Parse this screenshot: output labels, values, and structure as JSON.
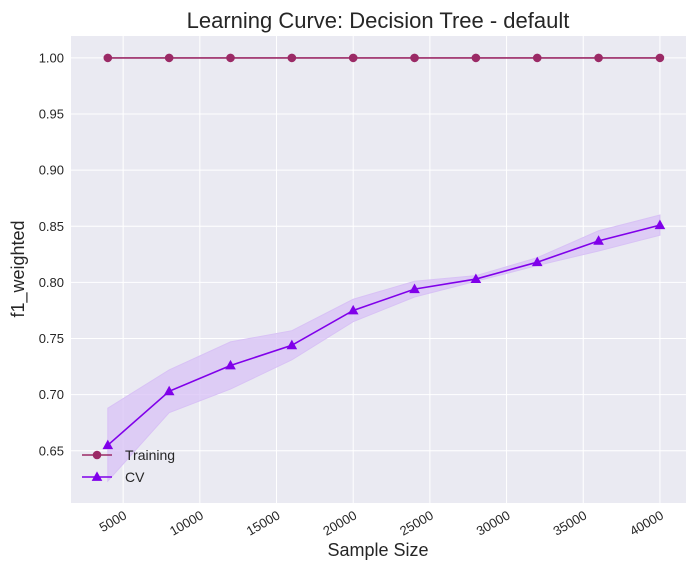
{
  "chart_data": {
    "type": "line",
    "title": "Learning Curve: Decision Tree - default",
    "xlabel": "Sample Size",
    "ylabel": "f1_weighted",
    "xlim": [
      1600,
      41700
    ],
    "ylim": [
      0.6035,
      1.0195
    ],
    "x_ticks": [
      5000,
      10000,
      15000,
      20000,
      25000,
      30000,
      35000,
      40000
    ],
    "y_ticks": [
      0.65,
      0.7,
      0.75,
      0.8,
      0.85,
      0.9,
      0.95,
      1.0
    ],
    "x_tick_labels": [
      "5000",
      "10000",
      "15000",
      "20000",
      "25000",
      "30000",
      "35000",
      "40000"
    ],
    "y_tick_labels": [
      "0.65",
      "0.70",
      "0.75",
      "0.80",
      "0.85",
      "0.90",
      "0.95",
      "1.00"
    ],
    "grid": true,
    "legend_position": "lower-left",
    "x": [
      4000,
      8000,
      12000,
      16000,
      20000,
      24000,
      28000,
      32000,
      36000,
      40000
    ],
    "series": [
      {
        "name": "Training",
        "marker": "circle",
        "color": "#9b2a66",
        "values": [
          1.0,
          1.0,
          1.0,
          1.0,
          1.0,
          1.0,
          1.0,
          1.0,
          1.0,
          1.0
        ],
        "lower": [
          1.0,
          1.0,
          1.0,
          1.0,
          1.0,
          1.0,
          1.0,
          1.0,
          1.0,
          1.0
        ],
        "upper": [
          1.0,
          1.0,
          1.0,
          1.0,
          1.0,
          1.0,
          1.0,
          1.0,
          1.0,
          1.0
        ]
      },
      {
        "name": "CV",
        "marker": "triangle",
        "color": "#8000ea",
        "band_color": "#d8c2f5",
        "values": [
          0.655,
          0.703,
          0.726,
          0.744,
          0.775,
          0.794,
          0.803,
          0.818,
          0.837,
          0.851
        ],
        "lower": [
          0.623,
          0.684,
          0.705,
          0.731,
          0.765,
          0.787,
          0.801,
          0.815,
          0.828,
          0.842
        ],
        "upper": [
          0.688,
          0.722,
          0.747,
          0.757,
          0.785,
          0.801,
          0.806,
          0.822,
          0.846,
          0.86
        ]
      }
    ],
    "colors": {
      "plot_background": "#eaeaf2",
      "grid": "#ffffff",
      "text": "#262626"
    }
  }
}
